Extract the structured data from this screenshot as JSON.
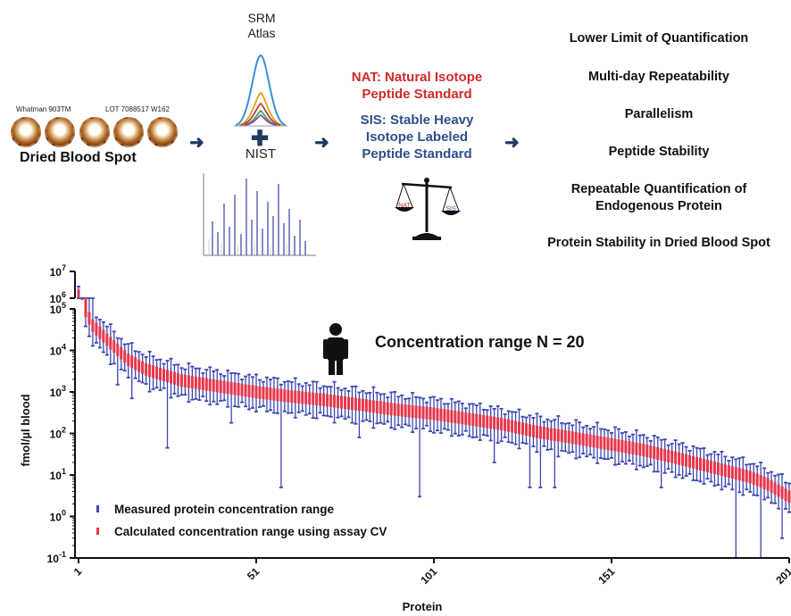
{
  "workflow": {
    "dbs": {
      "card_left": "Whatman 903TM",
      "card_right": "LOT 7088517 W162",
      "title": "Dried Blood Spot"
    },
    "srm": {
      "line1": "SRM",
      "line2": "Atlas"
    },
    "nist": "NIST",
    "nat": {
      "line1": "NAT: Natural Isotope",
      "line2": "Peptide Standard"
    },
    "sis": {
      "line1": "SIS: Stable Heavy",
      "line2": "Isotope Labeled",
      "line3": "Peptide Standard"
    },
    "scale": {
      "left": "NAT",
      "right": "SIS"
    },
    "criteria": [
      "Lower Limit of Quantification",
      "Multi-day Repeatability",
      "Parallelism",
      "Peptide Stability",
      "Repeatable Quantification of",
      "Endogenous Protein",
      "Protein Stability in Dried Blood Spot"
    ]
  },
  "colors": {
    "measured": "#3b46b0",
    "calculated": "#e8364a",
    "arrow": "#1f3a5f",
    "nat": "#d12a2a",
    "sis": "#2f4f8a"
  },
  "icons": {
    "person": "person-icon",
    "scale": "balance-scale-icon"
  },
  "chart_data": {
    "type": "scatter",
    "title": "Concentration range N = 20",
    "xlabel": "Protein",
    "ylabel": "fmol/µl blood",
    "y_scale": "log",
    "ylim": [
      0.1,
      10000000
    ],
    "xlim": [
      1,
      201
    ],
    "x_ticks": [
      "1",
      "51",
      "101",
      "151",
      "201"
    ],
    "y_ticks": [
      "10-1",
      "100",
      "101",
      "102",
      "103",
      "104",
      "105",
      "106",
      "107"
    ],
    "axis_break": "between 10^5 and 10^6",
    "legend": [
      "Measured protein concentration range",
      "Calculated concentration range using assay CV"
    ],
    "legend_position": "bottom-left",
    "n_proteins": 201,
    "anchor_medians": {
      "x": [
        1,
        2,
        3,
        5,
        10,
        15,
        20,
        30,
        40,
        51,
        60,
        70,
        80,
        90,
        101,
        110,
        120,
        130,
        140,
        151,
        160,
        170,
        180,
        190,
        195,
        201
      ],
      "y": [
        1500000,
        400000,
        90000,
        40000,
        15000,
        6000,
        3500,
        1900,
        1400,
        1000,
        800,
        650,
        500,
        380,
        300,
        230,
        170,
        110,
        80,
        55,
        40,
        25,
        15,
        9,
        6,
        3
      ]
    },
    "range_factors": {
      "measured_low": 0.4,
      "measured_high": 2.2,
      "calc_low": 0.7,
      "calc_high": 1.4
    },
    "deep_outliers": [
      {
        "x": 12,
        "min": 1500
      },
      {
        "x": 16,
        "min": 700
      },
      {
        "x": 26,
        "min": 45
      },
      {
        "x": 44,
        "min": 180
      },
      {
        "x": 58,
        "min": 5
      },
      {
        "x": 80,
        "min": 80
      },
      {
        "x": 97,
        "min": 3
      },
      {
        "x": 118,
        "min": 20
      },
      {
        "x": 128,
        "min": 5
      },
      {
        "x": 131,
        "min": 5
      },
      {
        "x": 135,
        "min": 5
      },
      {
        "x": 165,
        "min": 5
      },
      {
        "x": 186,
        "min": 0.1
      },
      {
        "x": 193,
        "min": 0.1
      },
      {
        "x": 199,
        "min": 0.3
      }
    ]
  }
}
